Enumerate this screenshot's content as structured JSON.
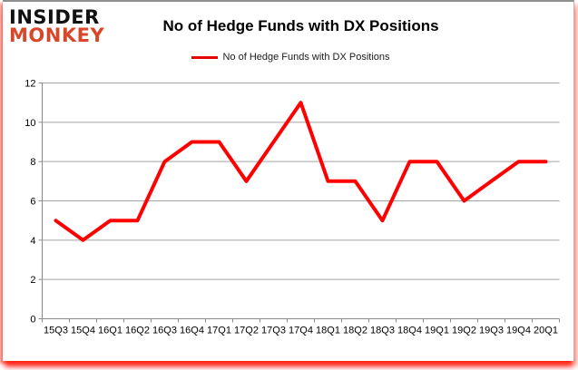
{
  "logo": {
    "line1": "INSIDER",
    "line2": "MONKEY",
    "line1_color": "#111111",
    "line2_color": "#d9472b"
  },
  "header": {
    "title": "No of Hedge Funds with DX Positions"
  },
  "legend": {
    "label": "No of Hedge Funds with DX Positions",
    "line_color": "#e60000"
  },
  "chart_data": {
    "type": "line",
    "title": "No of Hedge Funds with DX Positions",
    "categories": [
      "15Q3",
      "15Q4",
      "16Q1",
      "16Q2",
      "16Q3",
      "16Q4",
      "17Q1",
      "17Q2",
      "17Q3",
      "17Q4",
      "18Q1",
      "18Q2",
      "18Q3",
      "18Q4",
      "19Q1",
      "19Q2",
      "19Q3",
      "19Q4",
      "20Q1"
    ],
    "series": [
      {
        "name": "No of Hedge Funds with DX Positions",
        "color": "#ff0000",
        "values": [
          5,
          4,
          5,
          5,
          8,
          9,
          9,
          7,
          9,
          11,
          7,
          7,
          5,
          8,
          8,
          6,
          7,
          8,
          8
        ]
      }
    ],
    "xlabel": "",
    "ylabel": "",
    "ylim": [
      0,
      12
    ],
    "yticks": [
      0,
      2,
      4,
      6,
      8,
      10,
      12
    ],
    "grid": true,
    "gridline_color": "#a3a3a3",
    "axis_color": "#8c8c8c",
    "tick_label_color": "#000000",
    "legend_position": "top"
  }
}
